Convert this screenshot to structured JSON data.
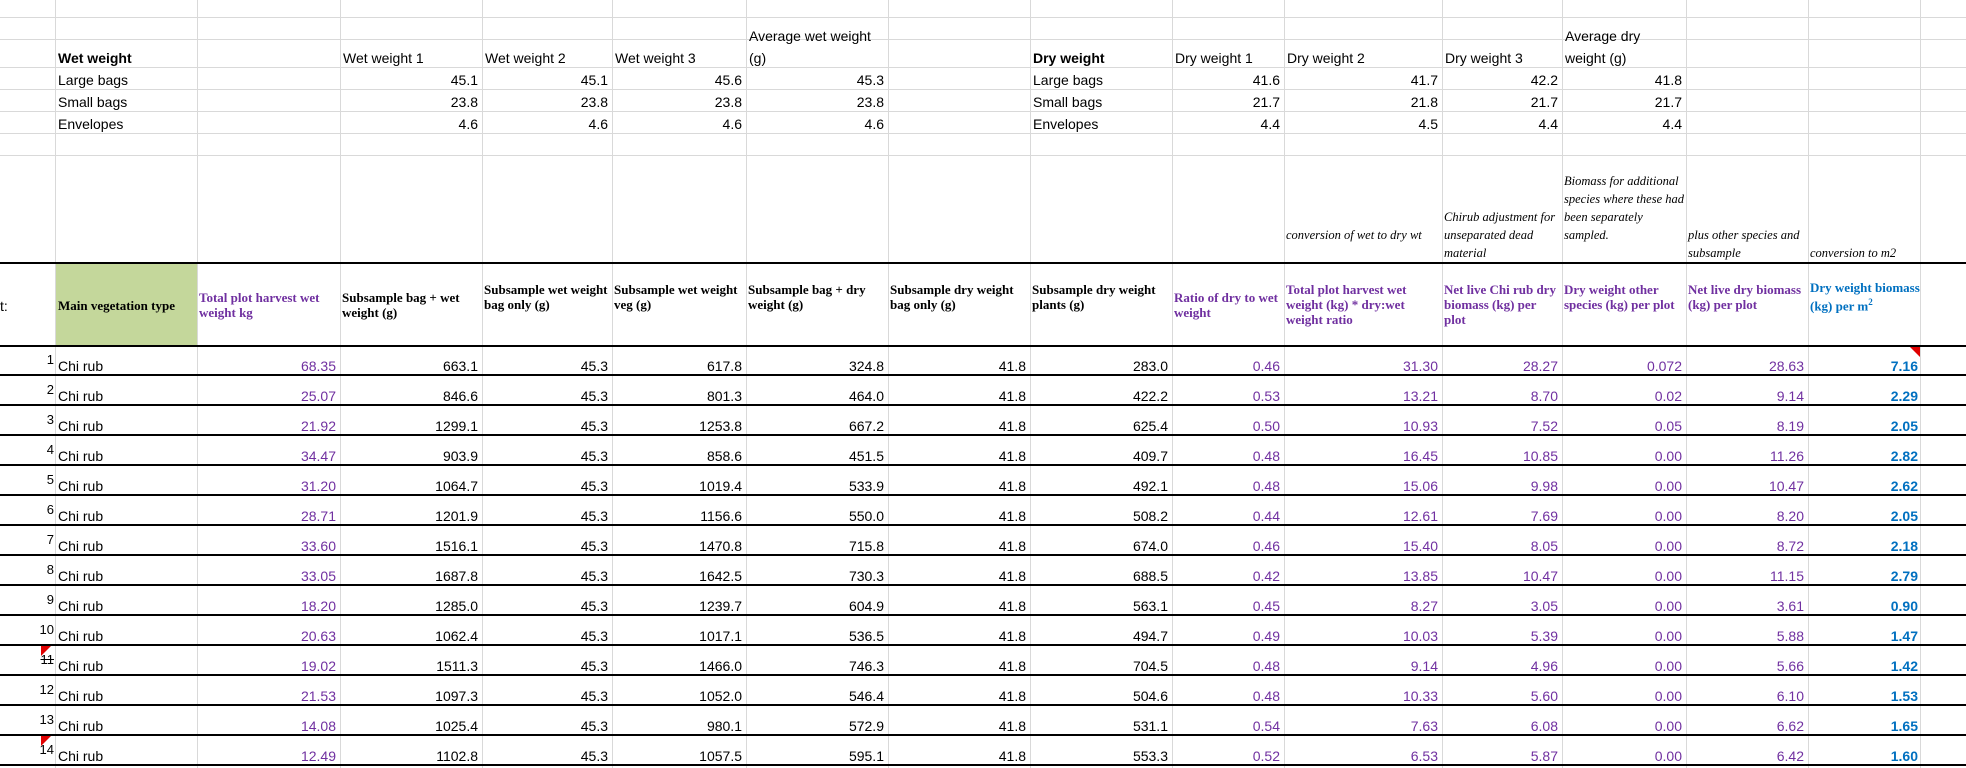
{
  "colors": {
    "purple": "#7030a0",
    "blue": "#0070c0",
    "header_fill": "#c4d79b",
    "comment_marker": "#e00000"
  },
  "wet": {
    "title": "Wet weight",
    "headers": [
      "Wet weight 1",
      "Wet weight 2",
      "Wet weight 3"
    ],
    "avg_line1": "Average wet weight",
    "avg_line2": "(g)",
    "rows": [
      {
        "label": "Large bags",
        "v1": "45.1",
        "v2": "45.1",
        "v3": "45.6",
        "avg": "45.3"
      },
      {
        "label": "Small bags",
        "v1": "23.8",
        "v2": "23.8",
        "v3": "23.8",
        "avg": "23.8"
      },
      {
        "label": "Envelopes",
        "v1": "4.6",
        "v2": "4.6",
        "v3": "4.6",
        "avg": "4.6"
      }
    ]
  },
  "dry": {
    "title": "Dry weight",
    "headers": [
      "Dry weight 1",
      "Dry weight 2",
      "Dry weight 3"
    ],
    "avg_line1": "Average dry",
    "avg_line2": "weight (g)",
    "rows": [
      {
        "label": "Large bags",
        "v1": "41.6",
        "v2": "41.7",
        "v3": "42.2",
        "avg": "41.8"
      },
      {
        "label": "Small bags",
        "v1": "21.7",
        "v2": "21.8",
        "v3": "21.7",
        "avg": "21.7"
      },
      {
        "label": "Envelopes",
        "v1": "4.4",
        "v2": "4.5",
        "v3": "4.4",
        "avg": "4.4"
      }
    ]
  },
  "notes": {
    "conversion_dry": "conversion of wet to dry wt",
    "chirub_adjust": "Chirub adjustment for unseparated dead material",
    "biomass_additional": "Biomass for additional species where these had been separately sampled.",
    "plus_other": "plus other species and subsample",
    "conversion_m2": "conversion to m2"
  },
  "table": {
    "row_label_prefix": "t:",
    "headers": {
      "main_veg": "Main vegetation type",
      "total_wet": "Total plot harvest wet weight kg",
      "subsample_bag_wet": "Subsample bag + wet weight (g)",
      "subsample_wet_bag": "Subsample wet weight bag only (g)",
      "subsample_wet_veg": "Subsample wet weight veg (g)",
      "subsample_bag_dry": "Subsample bag + dry weight (g)",
      "subsample_dry_bag": "Subsample dry weight bag only (g)",
      "subsample_dry_plants": "Subsample dry weight plants (g)",
      "ratio": "Ratio of dry to wet weight",
      "total_dry": "Total plot harvest wet weight (kg) * dry:wet weight ratio",
      "net_live_chi": "Net live Chi rub dry biomass (kg) per plot",
      "dry_other": "Dry weight other species (kg) per plot",
      "net_live_dry": "Net live dry biomass (kg) per plot",
      "dry_m2_main": "Dry weight biomass (kg) per m",
      "dry_m2_sup": "2"
    },
    "rows": [
      {
        "n": "1",
        "veg": "Chi rub",
        "c": [
          "68.35",
          "663.1",
          "45.3",
          "617.8",
          "324.8",
          "41.8",
          "283.0",
          "0.46",
          "31.30",
          "28.27",
          "0.072",
          "28.63",
          "7.16"
        ]
      },
      {
        "n": "2",
        "veg": "Chi rub",
        "c": [
          "25.07",
          "846.6",
          "45.3",
          "801.3",
          "464.0",
          "41.8",
          "422.2",
          "0.53",
          "13.21",
          "8.70",
          "0.02",
          "9.14",
          "2.29"
        ]
      },
      {
        "n": "3",
        "veg": "Chi rub",
        "c": [
          "21.92",
          "1299.1",
          "45.3",
          "1253.8",
          "667.2",
          "41.8",
          "625.4",
          "0.50",
          "10.93",
          "7.52",
          "0.05",
          "8.19",
          "2.05"
        ]
      },
      {
        "n": "4",
        "veg": "Chi rub",
        "c": [
          "34.47",
          "903.9",
          "45.3",
          "858.6",
          "451.5",
          "41.8",
          "409.7",
          "0.48",
          "16.45",
          "10.85",
          "0.00",
          "11.26",
          "2.82"
        ]
      },
      {
        "n": "5",
        "veg": "Chi rub",
        "c": [
          "31.20",
          "1064.7",
          "45.3",
          "1019.4",
          "533.9",
          "41.8",
          "492.1",
          "0.48",
          "15.06",
          "9.98",
          "0.00",
          "10.47",
          "2.62"
        ]
      },
      {
        "n": "6",
        "veg": "Chi rub",
        "c": [
          "28.71",
          "1201.9",
          "45.3",
          "1156.6",
          "550.0",
          "41.8",
          "508.2",
          "0.44",
          "12.61",
          "7.69",
          "0.00",
          "8.20",
          "2.05"
        ]
      },
      {
        "n": "7",
        "veg": "Chi rub",
        "c": [
          "33.60",
          "1516.1",
          "45.3",
          "1470.8",
          "715.8",
          "41.8",
          "674.0",
          "0.46",
          "15.40",
          "8.05",
          "0.00",
          "8.72",
          "2.18"
        ]
      },
      {
        "n": "8",
        "veg": "Chi rub",
        "c": [
          "33.05",
          "1687.8",
          "45.3",
          "1642.5",
          "730.3",
          "41.8",
          "688.5",
          "0.42",
          "13.85",
          "10.47",
          "0.00",
          "11.15",
          "2.79"
        ]
      },
      {
        "n": "9",
        "veg": "Chi rub",
        "c": [
          "18.20",
          "1285.0",
          "45.3",
          "1239.7",
          "604.9",
          "41.8",
          "563.1",
          "0.45",
          "8.27",
          "3.05",
          "0.00",
          "3.61",
          "0.90"
        ]
      },
      {
        "n": "10",
        "veg": "Chi rub",
        "c": [
          "20.63",
          "1062.4",
          "45.3",
          "1017.1",
          "536.5",
          "41.8",
          "494.7",
          "0.49",
          "10.03",
          "5.39",
          "0.00",
          "5.88",
          "1.47"
        ]
      },
      {
        "n": "11",
        "veg": "Chi rub",
        "c": [
          "19.02",
          "1511.3",
          "45.3",
          "1466.0",
          "746.3",
          "41.8",
          "704.5",
          "0.48",
          "9.14",
          "4.96",
          "0.00",
          "5.66",
          "1.42"
        ]
      },
      {
        "n": "12",
        "veg": "Chi rub",
        "c": [
          "21.53",
          "1097.3",
          "45.3",
          "1052.0",
          "546.4",
          "41.8",
          "504.6",
          "0.48",
          "10.33",
          "5.60",
          "0.00",
          "6.10",
          "1.53"
        ]
      },
      {
        "n": "13",
        "veg": "Chi rub",
        "c": [
          "14.08",
          "1025.4",
          "45.3",
          "980.1",
          "572.9",
          "41.8",
          "531.1",
          "0.54",
          "7.63",
          "6.08",
          "0.00",
          "6.62",
          "1.65"
        ]
      },
      {
        "n": "14",
        "veg": "Chi rub",
        "c": [
          "12.49",
          "1102.8",
          "45.3",
          "1057.5",
          "595.1",
          "41.8",
          "553.3",
          "0.52",
          "6.53",
          "5.87",
          "0.00",
          "6.42",
          "1.60"
        ]
      }
    ]
  }
}
